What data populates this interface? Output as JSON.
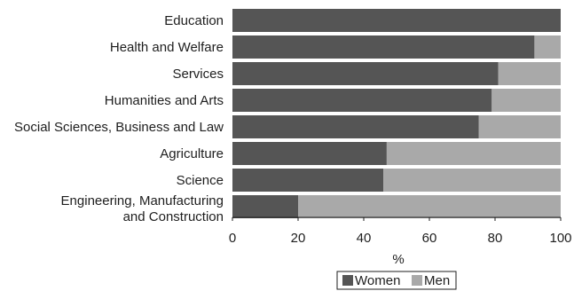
{
  "chart_data": {
    "type": "bar",
    "orientation": "horizontal",
    "stacked": true,
    "categories": [
      "Education",
      "Health and Welfare",
      "Services",
      "Humanities and Arts",
      "Social Sciences, Business and Law",
      "Agriculture",
      "Science",
      "Engineering, Manufacturing and Construction"
    ],
    "category_label_lines": [
      [
        "Education"
      ],
      [
        "Health and Welfare"
      ],
      [
        "Services"
      ],
      [
        "Humanities and Arts"
      ],
      [
        "Social Sciences, Business and Law"
      ],
      [
        "Agriculture"
      ],
      [
        "Science"
      ],
      [
        "Engineering, Manufacturing",
        "and Construction"
      ]
    ],
    "series": [
      {
        "name": "Women",
        "values": [
          100,
          92,
          81,
          79,
          75,
          47,
          46,
          20
        ],
        "color": "#555555"
      },
      {
        "name": "Men",
        "values": [
          0,
          8,
          19,
          21,
          25,
          53,
          54,
          80
        ],
        "color": "#a9a9a9"
      }
    ],
    "xlabel": "%",
    "ylabel": "",
    "xlim": [
      0,
      100
    ],
    "xticks": [
      0,
      20,
      40,
      60,
      80,
      100
    ],
    "legend_position": "bottom",
    "grid": false
  }
}
